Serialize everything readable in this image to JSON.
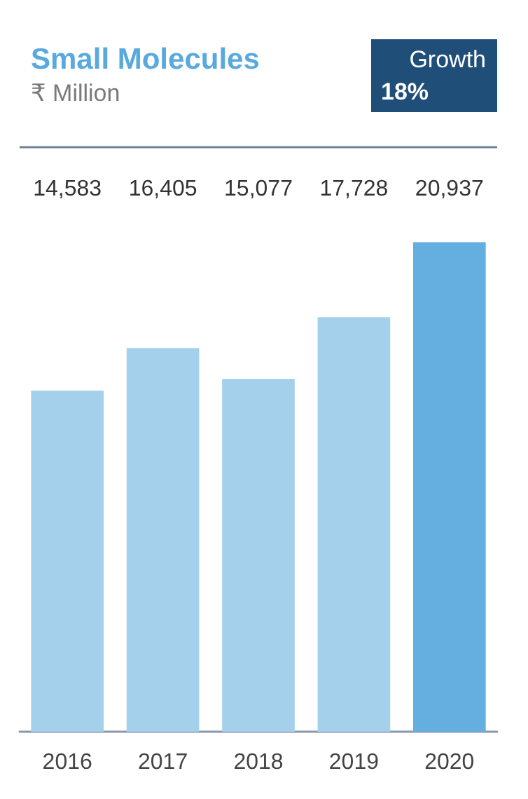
{
  "chart_data": {
    "type": "bar",
    "title": "Small Molecules",
    "subtitle": "₹ Million",
    "annotations": [
      "Growth",
      "18%"
    ],
    "categories": [
      "2016",
      "2017",
      "2018",
      "2019",
      "2020"
    ],
    "values": [
      14583,
      16405,
      15077,
      17728,
      20937
    ],
    "colors": [
      "#a5d0ec",
      "#a5d0ec",
      "#a5d0ec",
      "#a5d0ec",
      "#65afe0"
    ],
    "value_labels": [
      "14,583",
      "16,405",
      "15,077",
      "17,728",
      "20,937"
    ]
  }
}
